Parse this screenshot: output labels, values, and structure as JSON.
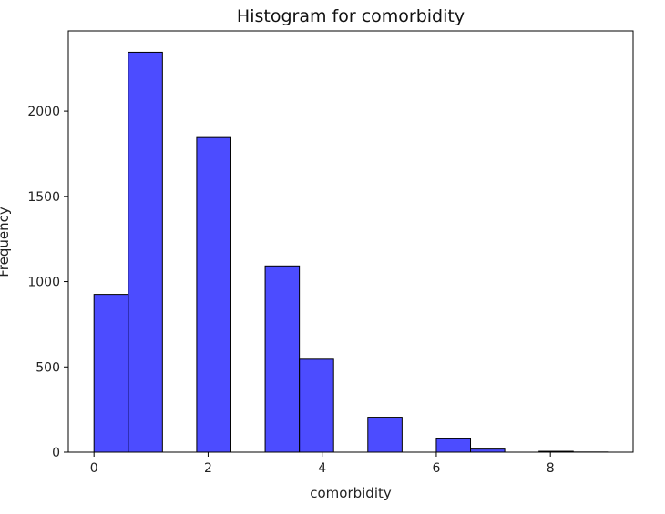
{
  "chart_data": {
    "type": "bar",
    "title": "Histogram for comorbidity",
    "xlabel": "comorbidity",
    "ylabel": "Frequency",
    "xlim": [
      -0.45,
      9.45
    ],
    "ylim": [
      0,
      2470
    ],
    "x_ticks": [
      0,
      2,
      4,
      6,
      8
    ],
    "y_ticks": [
      0,
      500,
      1000,
      1500,
      2000
    ],
    "bins": [
      {
        "x0": 0.0,
        "x1": 0.6,
        "value": 925
      },
      {
        "x0": 0.6,
        "x1": 1.2,
        "value": 2345
      },
      {
        "x0": 1.2,
        "x1": 1.8,
        "value": 0
      },
      {
        "x0": 1.8,
        "x1": 2.4,
        "value": 1845
      },
      {
        "x0": 2.4,
        "x1": 3.0,
        "value": 0
      },
      {
        "x0": 3.0,
        "x1": 3.6,
        "value": 1092
      },
      {
        "x0": 3.6,
        "x1": 4.2,
        "value": 545
      },
      {
        "x0": 4.2,
        "x1": 4.8,
        "value": 0
      },
      {
        "x0": 4.8,
        "x1": 5.4,
        "value": 205
      },
      {
        "x0": 5.4,
        "x1": 6.0,
        "value": 0
      },
      {
        "x0": 6.0,
        "x1": 6.6,
        "value": 78
      },
      {
        "x0": 6.6,
        "x1": 7.2,
        "value": 18
      },
      {
        "x0": 7.2,
        "x1": 7.8,
        "value": 0
      },
      {
        "x0": 7.8,
        "x1": 8.4,
        "value": 5
      },
      {
        "x0": 8.4,
        "x1": 9.0,
        "value": 1
      }
    ],
    "bar_color": "#0000ff",
    "bar_opacity": 0.7,
    "edge_color": "#000000",
    "grid": false
  }
}
